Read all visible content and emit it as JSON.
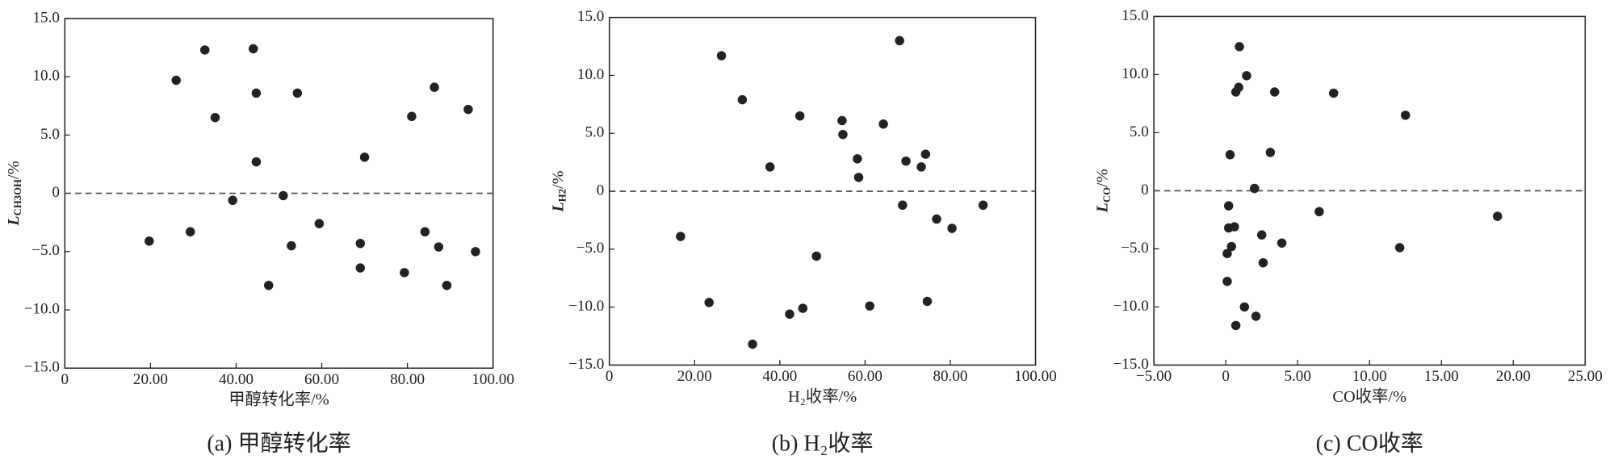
{
  "chart_data": [
    {
      "type": "scatter",
      "caption": "(a) 甲醇转化率",
      "xlabel": "甲醇转化率/%",
      "ylabel": {
        "symbol": "L",
        "sub": "CH3OH",
        "unit": "/%"
      },
      "color": "#222222",
      "hline": 0,
      "xlim": [
        0,
        100
      ],
      "ylim": [
        -15,
        15
      ],
      "xticks": [
        0,
        {
          "value": 20,
          "label": "20.00"
        },
        {
          "value": 40,
          "label": "40.00"
        },
        {
          "value": 60,
          "label": "60.00"
        },
        {
          "value": 80,
          "label": "80.00"
        },
        {
          "value": 100,
          "label": "100.00"
        }
      ],
      "yticks": [
        {
          "value": -15,
          "label": "−15.0"
        },
        {
          "value": -10,
          "label": "−10.0"
        },
        {
          "value": -5,
          "label": "−5.0"
        },
        0,
        {
          "value": 5,
          "label": "5.0"
        },
        {
          "value": 10,
          "label": "10.0"
        },
        {
          "value": 15,
          "label": "15.0"
        }
      ],
      "x": [
        19.7,
        26.0,
        29.3,
        32.7,
        35.1,
        39.2,
        44.0,
        44.7,
        44.7,
        47.6,
        51.0,
        52.9,
        54.3,
        59.4,
        69.0,
        69.0,
        70.0,
        79.3,
        81.0,
        84.1,
        86.3,
        87.3,
        89.2,
        94.2,
        95.9
      ],
      "y": [
        -4.1,
        9.7,
        -3.3,
        12.3,
        6.5,
        -0.6,
        12.4,
        8.6,
        2.7,
        -7.9,
        -0.2,
        -4.5,
        8.6,
        -2.6,
        -4.3,
        -6.4,
        3.1,
        -6.8,
        6.6,
        -3.3,
        9.1,
        -4.6,
        -7.9,
        7.2,
        -5.0
      ]
    },
    {
      "type": "scatter",
      "caption": "(b) H₂收率",
      "xlabel": "H₂收率/%",
      "ylabel": {
        "symbol": "L",
        "sub": "H2",
        "unit": "/%"
      },
      "color": "#222222",
      "hline": 0,
      "xlim": [
        0,
        100
      ],
      "ylim": [
        -15,
        15
      ],
      "xticks": [
        0,
        {
          "value": 20,
          "label": "20.00"
        },
        {
          "value": 40,
          "label": "40.00"
        },
        {
          "value": 60,
          "label": "60.00"
        },
        {
          "value": 80,
          "label": "80.00"
        },
        {
          "value": 100,
          "label": "100.00"
        }
      ],
      "yticks": [
        {
          "value": -15,
          "label": "−15.0"
        },
        {
          "value": -10,
          "label": "−10.0"
        },
        {
          "value": -5,
          "label": "−5.0"
        },
        0,
        {
          "value": 5,
          "label": "5.0"
        },
        {
          "value": 10,
          "label": "10.0"
        },
        {
          "value": 15,
          "label": "15.0"
        }
      ],
      "x": [
        16.7,
        23.4,
        26.3,
        31.2,
        33.6,
        37.7,
        42.3,
        44.7,
        45.4,
        48.6,
        54.6,
        54.8,
        58.2,
        58.5,
        61.1,
        64.3,
        68.1,
        68.8,
        69.6,
        73.2,
        74.2,
        74.6,
        76.8,
        80.4,
        87.7
      ],
      "y": [
        -3.9,
        -9.6,
        11.7,
        7.9,
        -13.2,
        2.1,
        -10.6,
        6.5,
        -10.1,
        -5.6,
        6.1,
        4.9,
        2.8,
        1.2,
        -9.9,
        5.8,
        13.0,
        -1.2,
        2.6,
        2.1,
        3.2,
        -9.5,
        -2.4,
        -3.2,
        -1.2
      ]
    },
    {
      "type": "scatter",
      "caption": "(c) CO收率",
      "xlabel": "CO收率/%",
      "ylabel": {
        "symbol": "L",
        "sub": "CO",
        "unit": "/%"
      },
      "color": "#222222",
      "hline": 0,
      "xlim": [
        -5,
        25
      ],
      "ylim": [
        -15,
        15
      ],
      "xticks": [
        {
          "value": -5,
          "label": "−5.00"
        },
        0,
        {
          "value": 5,
          "label": "5.00"
        },
        {
          "value": 10,
          "label": "10.00"
        },
        {
          "value": 15,
          "label": "15.00"
        },
        {
          "value": 20,
          "label": "20.00"
        },
        {
          "value": 25,
          "label": "25.00"
        }
      ],
      "yticks": [
        {
          "value": -15,
          "label": "−15.0"
        },
        {
          "value": -10,
          "label": "−10.0"
        },
        {
          "value": -5,
          "label": "−5.0"
        },
        0,
        {
          "value": 5,
          "label": "5.0"
        },
        {
          "value": 10,
          "label": "10.0"
        },
        {
          "value": 15,
          "label": "15.0"
        }
      ],
      "x": [
        0.95,
        1.45,
        0.9,
        0.7,
        3.4,
        7.5,
        12.5,
        0.3,
        3.1,
        2.0,
        0.2,
        6.5,
        18.9,
        0.2,
        0.6,
        2.5,
        3.9,
        0.4,
        12.1,
        0.1,
        2.6,
        0.1,
        1.3,
        2.1,
        0.7
      ],
      "y": [
        12.4,
        9.9,
        8.9,
        8.5,
        8.5,
        8.4,
        6.5,
        3.1,
        3.3,
        0.2,
        -1.3,
        -1.8,
        -2.2,
        -3.2,
        -3.1,
        -3.8,
        -4.5,
        -4.8,
        -4.9,
        -5.4,
        -6.2,
        -7.8,
        -10.0,
        -10.8,
        -11.6
      ]
    }
  ]
}
